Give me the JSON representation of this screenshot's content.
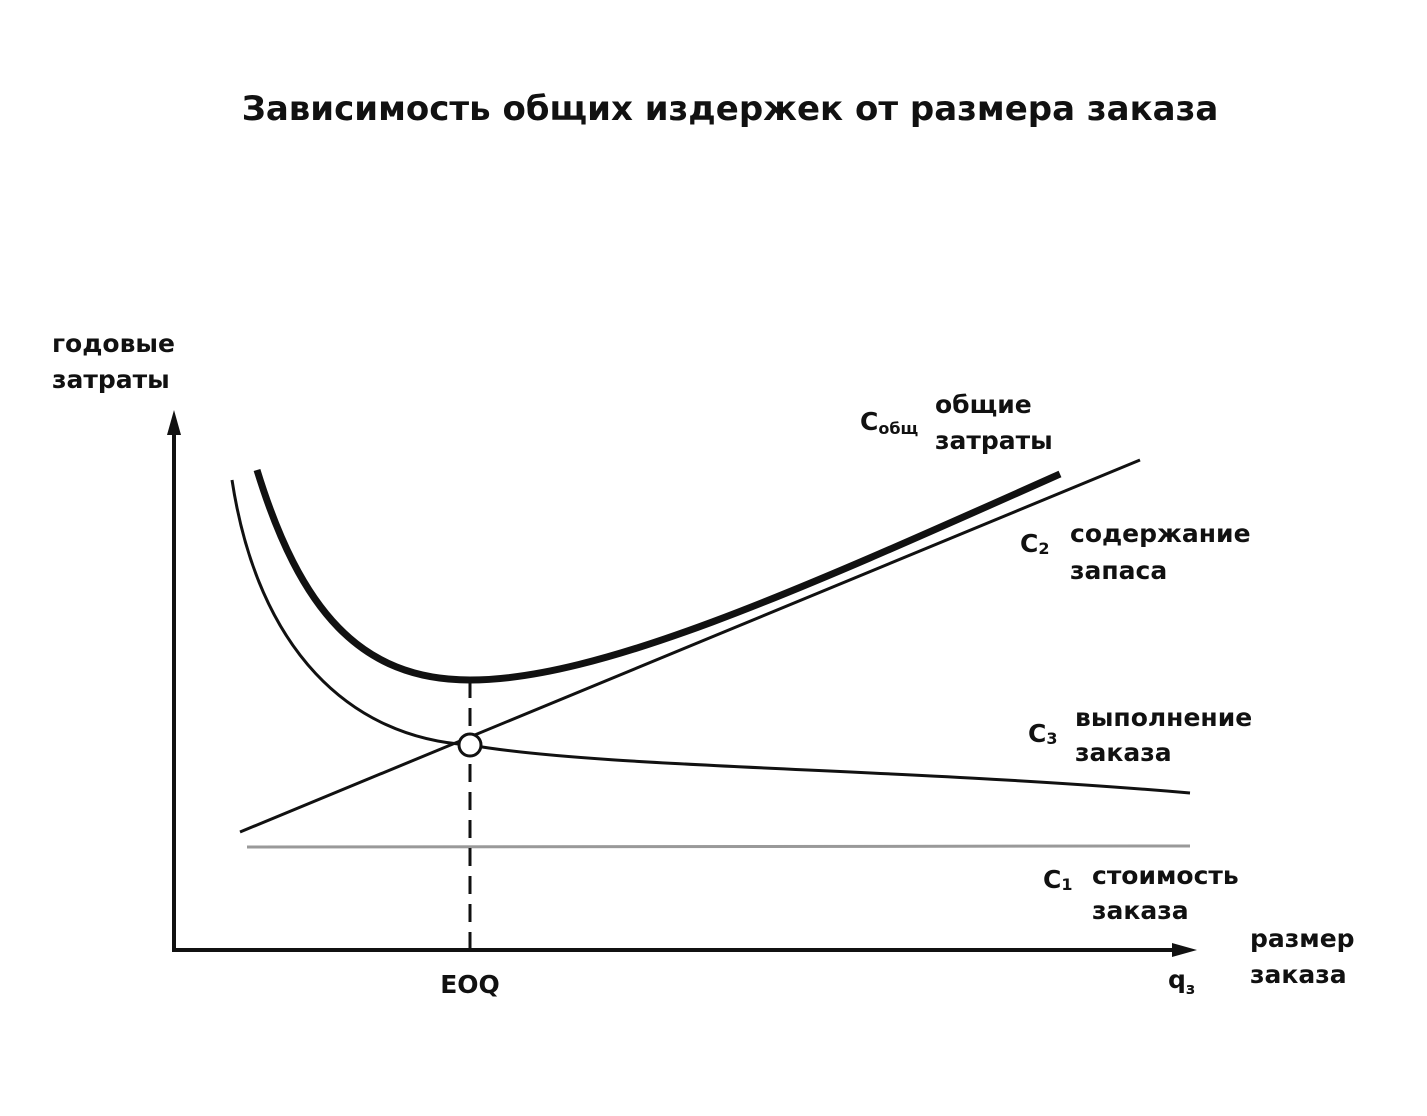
{
  "title": "Зависимость общих издержек от размера заказа",
  "y_axis_label": [
    "годовые",
    "затраты"
  ],
  "x_axis_label": [
    "размер",
    "заказа"
  ],
  "x_axis_end": {
    "symbol": "q",
    "subscript": "з"
  },
  "eoq_label": "EOQ",
  "curves": [
    {
      "symbol": "C",
      "subscript": "общ",
      "label": [
        "общие",
        "затраты"
      ]
    },
    {
      "symbol": "C",
      "subscript": "2",
      "label": [
        "содержание",
        "запаса"
      ]
    },
    {
      "symbol": "C",
      "subscript": "3",
      "label": [
        "выполнение",
        "заказа"
      ]
    },
    {
      "symbol": "C",
      "subscript": "1",
      "label": [
        "стоимость",
        "заказа"
      ]
    }
  ]
}
